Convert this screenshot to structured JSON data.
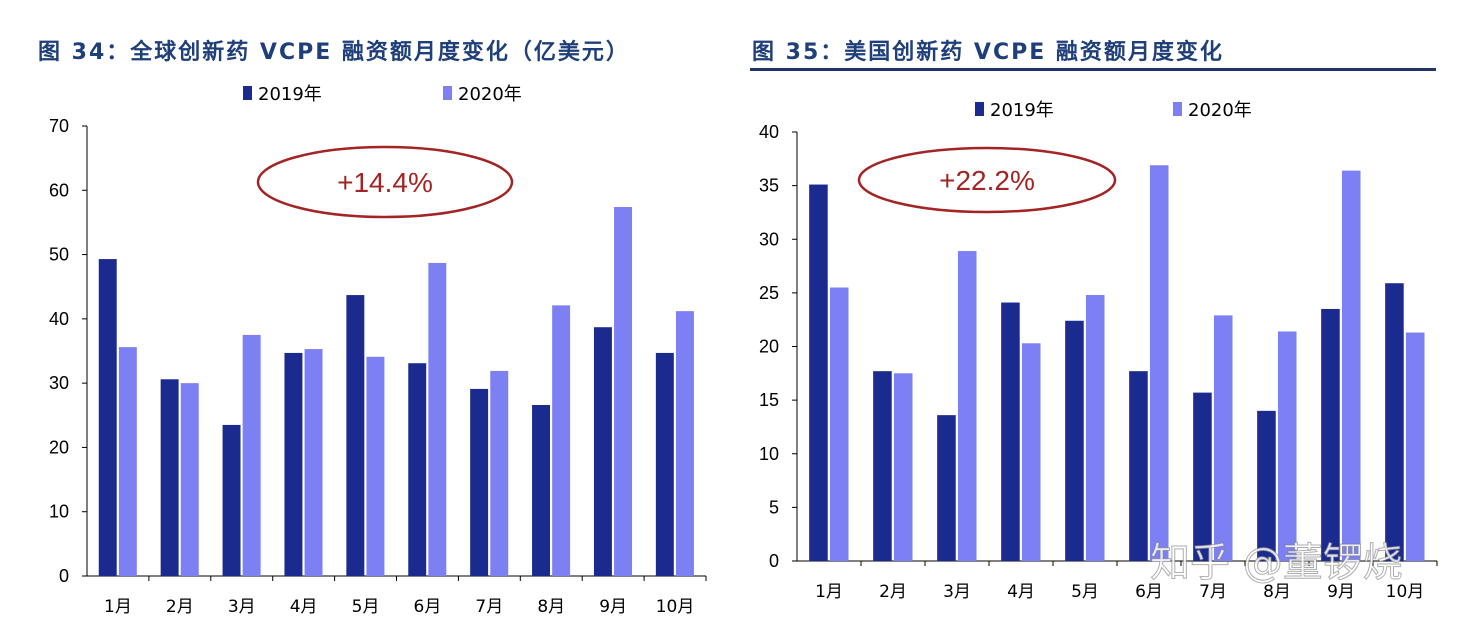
{
  "chart_data": [
    {
      "type": "bar",
      "title": "图 34：全球创新药 VCPE 融资额月度变化（亿美元）",
      "categories": [
        "1月",
        "2月",
        "3月",
        "4月",
        "5月",
        "6月",
        "7月",
        "8月",
        "9月",
        "10月"
      ],
      "series": [
        {
          "name": "2019年",
          "color": "#1b2a8e",
          "values": [
            49.3,
            30.6,
            23.5,
            34.7,
            43.7,
            33.1,
            29.1,
            26.6,
            38.7,
            34.7
          ]
        },
        {
          "name": "2020年",
          "color": "#7c80f2",
          "values": [
            35.6,
            30.0,
            37.5,
            35.3,
            34.1,
            48.7,
            31.9,
            42.1,
            57.4,
            41.2
          ]
        }
      ],
      "ylim": [
        0,
        70
      ],
      "yticks": [
        0,
        10,
        20,
        30,
        40,
        50,
        60,
        70
      ],
      "legend": "top-center",
      "annotation": "+14.4%",
      "xlabel": "",
      "ylabel": ""
    },
    {
      "type": "bar",
      "title": "图 35：美国创新药 VCPE 融资额月度变化",
      "categories": [
        "1月",
        "2月",
        "3月",
        "4月",
        "5月",
        "6月",
        "7月",
        "8月",
        "9月",
        "10月"
      ],
      "series": [
        {
          "name": "2019年",
          "color": "#1b2a8e",
          "values": [
            35.1,
            17.7,
            13.6,
            24.1,
            22.4,
            17.7,
            15.7,
            14.0,
            23.5,
            25.9
          ]
        },
        {
          "name": "2020年",
          "color": "#7c80f2",
          "values": [
            25.5,
            17.5,
            28.9,
            20.3,
            24.8,
            36.9,
            22.9,
            21.4,
            36.4,
            21.3
          ]
        }
      ],
      "ylim": [
        0,
        40
      ],
      "yticks": [
        0,
        5,
        10,
        15,
        20,
        25,
        30,
        35,
        40
      ],
      "legend": "top-center",
      "annotation": "+22.2%",
      "xlabel": "",
      "ylabel": ""
    }
  ],
  "annotation_color": "#a32424",
  "watermark": "知乎 @董锣烧"
}
